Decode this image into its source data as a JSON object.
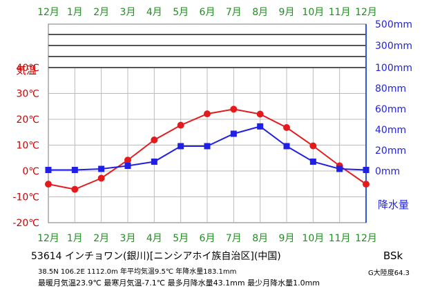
{
  "chart_data": {
    "type": "line",
    "categories": [
      "12月",
      "1月",
      "2月",
      "3月",
      "4月",
      "5月",
      "6月",
      "7月",
      "8月",
      "9月",
      "10月",
      "11月",
      "12月"
    ],
    "series": [
      {
        "name": "気温",
        "unit": "℃",
        "color": "#e41a1c",
        "marker": "circle",
        "values": [
          -5.1,
          -7.1,
          -2.8,
          4.2,
          12.0,
          17.7,
          22.1,
          23.9,
          22.0,
          16.8,
          9.7,
          2.0,
          -5.1
        ]
      },
      {
        "name": "降水量",
        "unit": "mm",
        "color": "#1f1fe6",
        "marker": "square",
        "values": [
          1.0,
          1.0,
          2.0,
          5.0,
          9.0,
          24.0,
          24.0,
          36.0,
          43.1,
          24.0,
          9.0,
          2.0,
          1.0
        ]
      }
    ],
    "left_axis": {
      "label": "気温",
      "ticks": [
        "40℃",
        "30℃",
        "20℃",
        "10℃",
        "0℃",
        "-10℃",
        "-20℃"
      ],
      "tick_values": [
        40,
        30,
        20,
        10,
        0,
        -10,
        -20
      ],
      "ylim": [
        -20,
        40
      ],
      "color": "#cc0000"
    },
    "right_axis": {
      "label": "降水量",
      "ticks": [
        "500mm",
        "300mm",
        "100mm",
        "80mm",
        "60mm",
        "40mm",
        "20mm",
        "0mm"
      ],
      "tick_values": [
        500,
        300,
        100,
        80,
        60,
        40,
        20,
        0
      ],
      "linear_range": [
        0,
        100
      ],
      "color": "#1f1fe6"
    },
    "x_tick_color": "#228b22",
    "grid": true
  },
  "caption": {
    "title": "53614 インチョワン(銀川)[ニンシアホイ族自治区](中国)",
    "line2": "38.5N 106.2E 1112.0m 年平均気温9.5℃ 年降水量183.1mm",
    "line3": "最暖月気温23.9℃ 最寒月気温-7.1℃ 最多月降水量43.1mm 最少月降水量1.0mm",
    "climate_code": "BSk",
    "aridity": "G大陸度64.3"
  }
}
